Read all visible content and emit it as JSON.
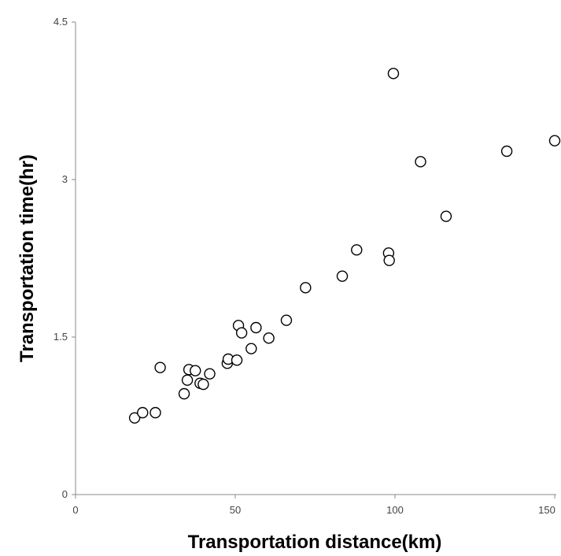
{
  "chart_data": {
    "type": "scatter",
    "xlabel": "Transportation distance(km)",
    "ylabel": "Transportation time(hr)",
    "xlim": [
      0,
      150
    ],
    "ylim": [
      0,
      4.5
    ],
    "x_ticks": [
      "0",
      "50",
      "100",
      "150"
    ],
    "y_ticks": [
      "0",
      "1.5",
      "3",
      "4.5"
    ],
    "grid": false,
    "legend": "none",
    "marker": "open-circle",
    "marker_color": "#000000",
    "series": [
      {
        "points": [
          {
            "x": 18.5,
            "y": 0.73
          },
          {
            "x": 21.0,
            "y": 0.78
          },
          {
            "x": 25.0,
            "y": 0.78
          },
          {
            "x": 26.5,
            "y": 1.21
          },
          {
            "x": 34.0,
            "y": 0.96
          },
          {
            "x": 35.0,
            "y": 1.09
          },
          {
            "x": 35.5,
            "y": 1.19
          },
          {
            "x": 37.5,
            "y": 1.18
          },
          {
            "x": 39.0,
            "y": 1.06
          },
          {
            "x": 40.0,
            "y": 1.05
          },
          {
            "x": 42.0,
            "y": 1.15
          },
          {
            "x": 47.5,
            "y": 1.25
          },
          {
            "x": 47.8,
            "y": 1.29
          },
          {
            "x": 50.5,
            "y": 1.28
          },
          {
            "x": 51.0,
            "y": 1.61
          },
          {
            "x": 52.0,
            "y": 1.54
          },
          {
            "x": 55.0,
            "y": 1.39
          },
          {
            "x": 56.5,
            "y": 1.59
          },
          {
            "x": 60.5,
            "y": 1.49
          },
          {
            "x": 66.0,
            "y": 1.66
          },
          {
            "x": 72.0,
            "y": 1.97
          },
          {
            "x": 83.5,
            "y": 2.08
          },
          {
            "x": 88.0,
            "y": 2.33
          },
          {
            "x": 98.0,
            "y": 2.3
          },
          {
            "x": 98.2,
            "y": 2.23
          },
          {
            "x": 99.5,
            "y": 4.01
          },
          {
            "x": 108.0,
            "y": 3.17
          },
          {
            "x": 116.0,
            "y": 2.65
          },
          {
            "x": 135.0,
            "y": 3.27
          },
          {
            "x": 150.0,
            "y": 3.37
          }
        ]
      }
    ]
  }
}
